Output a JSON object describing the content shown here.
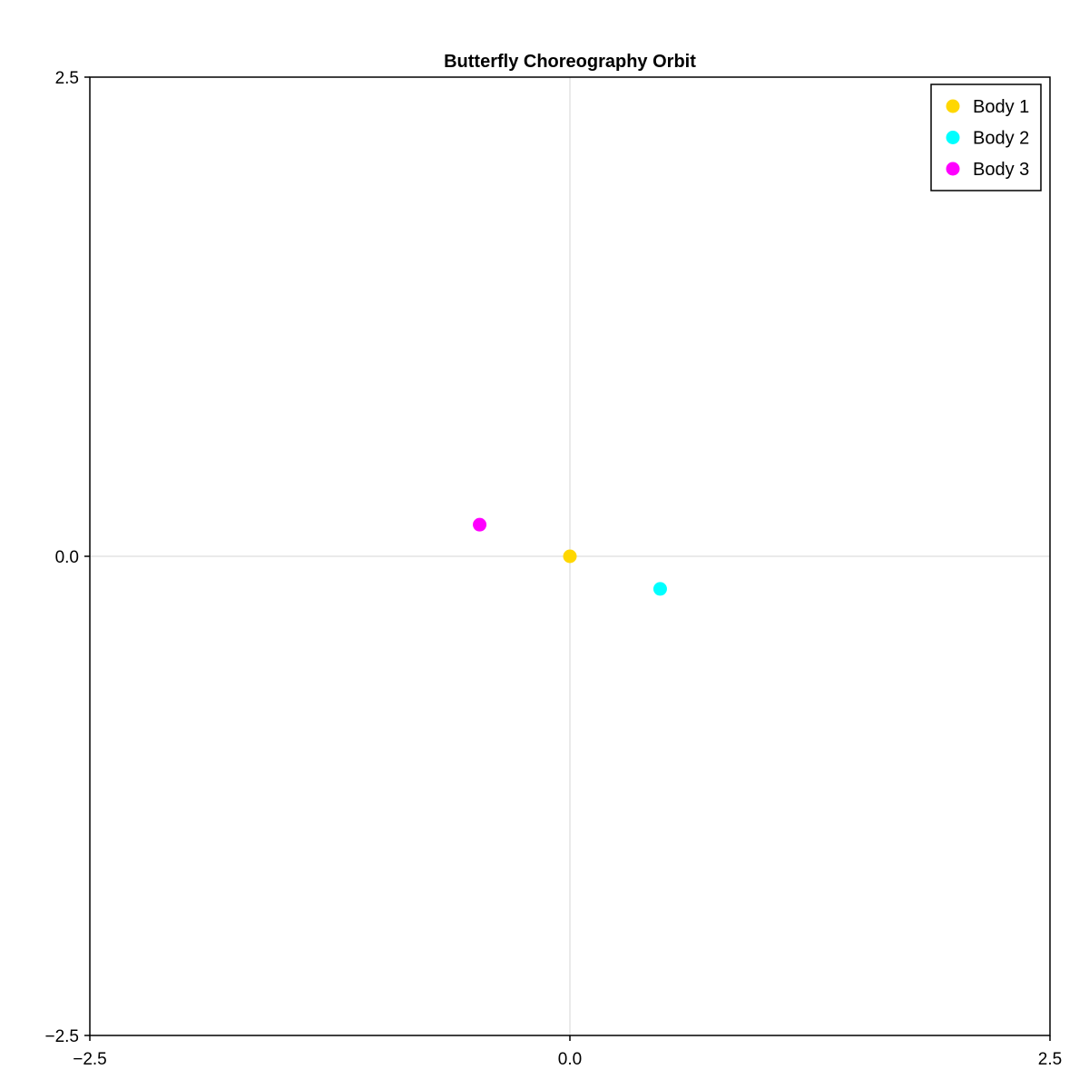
{
  "chart_data": {
    "type": "scatter",
    "title": "Butterfly Choreography Orbit",
    "xlabel": "",
    "ylabel": "",
    "xlim": [
      -2.5,
      2.5
    ],
    "ylim": [
      -2.5,
      2.5
    ],
    "x_ticks": [
      -2.5,
      0.0,
      2.5
    ],
    "y_ticks": [
      -2.5,
      0.0,
      2.5
    ],
    "x_tick_labels": [
      "−2.5",
      "0.0",
      "2.5"
    ],
    "y_tick_labels": [
      "−2.5",
      "0.0",
      "2.5"
    ],
    "grid": true,
    "legend_position": "top-right",
    "series": [
      {
        "name": "Body 1",
        "color": "#FFD700",
        "x": [
          0.0
        ],
        "y": [
          0.0
        ]
      },
      {
        "name": "Body 2",
        "color": "#00FFFF",
        "x": [
          0.47
        ],
        "y": [
          -0.17
        ]
      },
      {
        "name": "Body 3",
        "color": "#FF00FF",
        "x": [
          -0.47
        ],
        "y": [
          0.165
        ]
      }
    ]
  }
}
